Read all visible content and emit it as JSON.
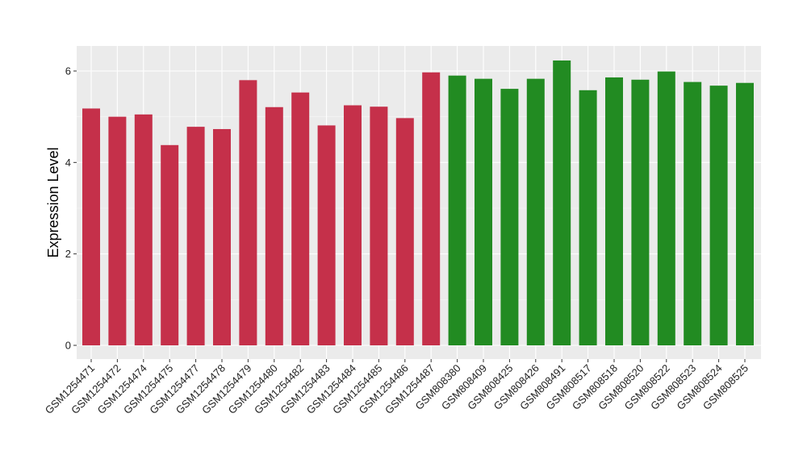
{
  "chart_data": {
    "type": "bar",
    "title": "",
    "xlabel": "",
    "ylabel": "Expression Level",
    "ylim": [
      0,
      6.55
    ],
    "yticks": [
      0,
      2,
      4,
      6
    ],
    "grid": true,
    "legend": "none",
    "colors": {
      "group_a": "#c5304a",
      "group_b": "#228b22",
      "panel_bg": "#ebebeb",
      "grid_major": "#ffffff"
    },
    "categories": [
      "GSM1254471",
      "GSM1254472",
      "GSM1254474",
      "GSM1254475",
      "GSM1254477",
      "GSM1254478",
      "GSM1254479",
      "GSM1254480",
      "GSM1254482",
      "GSM1254483",
      "GSM1254484",
      "GSM1254485",
      "GSM1254486",
      "GSM1254487",
      "GSM808380",
      "GSM808409",
      "GSM808425",
      "GSM808426",
      "GSM808491",
      "GSM808517",
      "GSM808518",
      "GSM808520",
      "GSM808522",
      "GSM808523",
      "GSM808524",
      "GSM808525"
    ],
    "values": [
      5.18,
      5.0,
      5.05,
      4.38,
      4.78,
      4.73,
      5.8,
      5.21,
      5.53,
      4.81,
      5.25,
      5.22,
      4.97,
      5.97,
      5.9,
      5.83,
      5.61,
      5.83,
      6.23,
      5.58,
      5.86,
      5.81,
      5.99,
      5.76,
      5.68,
      5.74
    ],
    "groups": [
      "a",
      "a",
      "a",
      "a",
      "a",
      "a",
      "a",
      "a",
      "a",
      "a",
      "a",
      "a",
      "a",
      "a",
      "b",
      "b",
      "b",
      "b",
      "b",
      "b",
      "b",
      "b",
      "b",
      "b",
      "b",
      "b"
    ]
  }
}
